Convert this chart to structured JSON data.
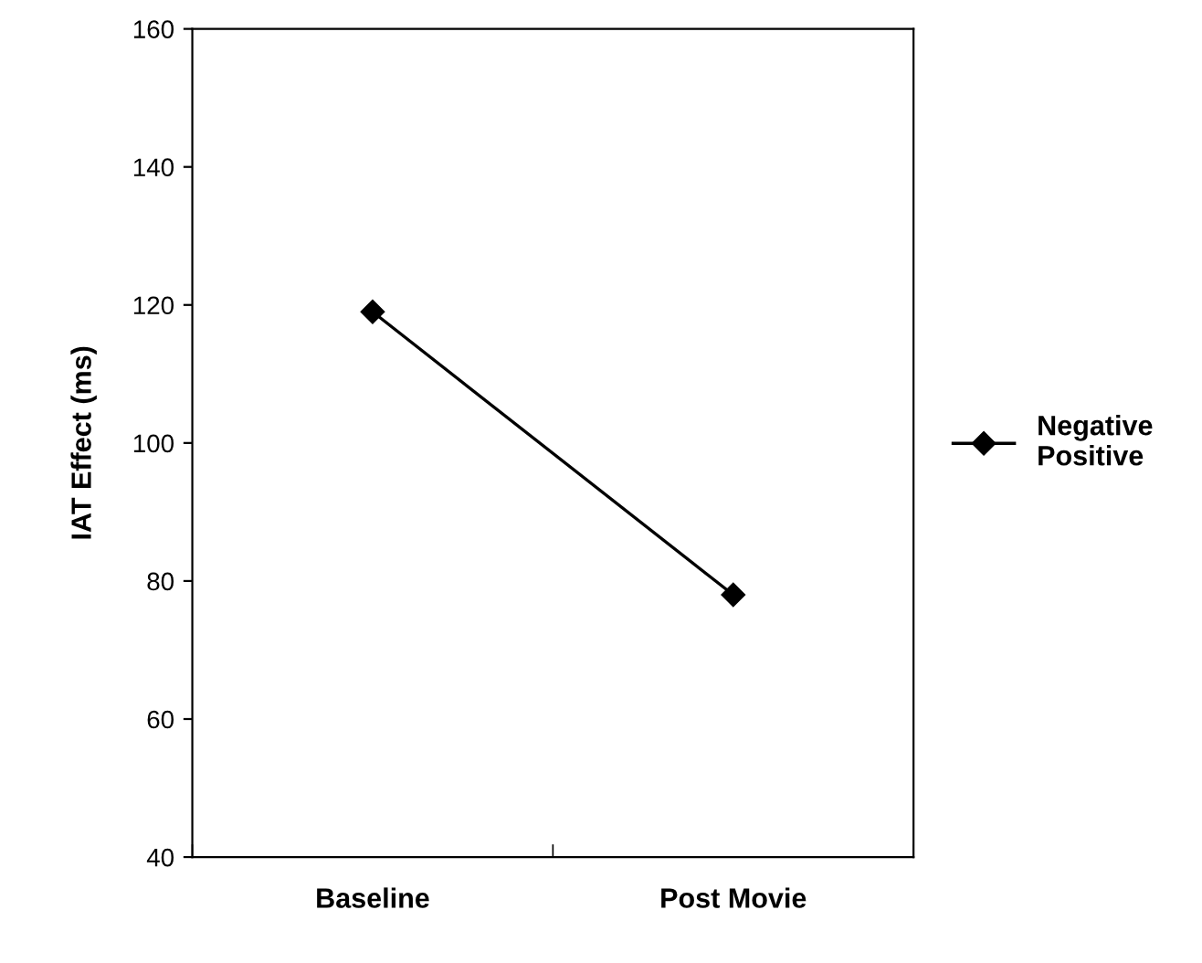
{
  "chart_data": {
    "type": "line",
    "ylabel": "IAT Effect (ms)",
    "categories": [
      "Baseline",
      "Post Movie"
    ],
    "series": [
      {
        "name": "Negative\nPositive",
        "color": "#000000",
        "values": [
          119,
          78
        ]
      }
    ],
    "ylim": [
      40,
      160
    ],
    "yticks": [
      40,
      60,
      80,
      100,
      120,
      140,
      160
    ],
    "marker": "diamond",
    "line_style": "solid",
    "grid": false,
    "legend": "right"
  }
}
